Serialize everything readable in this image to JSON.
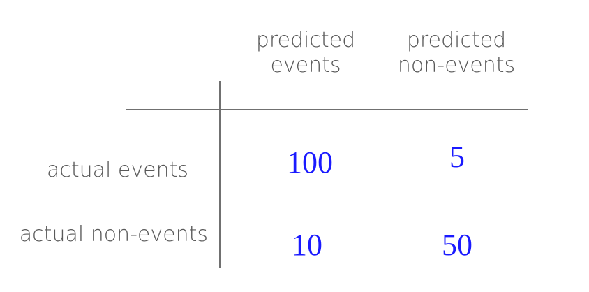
{
  "headers": {
    "predicted_events": [
      "predicted",
      "events"
    ],
    "predicted_non_events": [
      "predicted",
      "non-events"
    ]
  },
  "rows": [
    {
      "label": "actual events",
      "values": [
        "100",
        "5"
      ]
    },
    {
      "label": "actual non-events",
      "values": [
        "10",
        "50"
      ]
    }
  ],
  "colors": {
    "label_text": "#595959",
    "cell_text": "#1a1aff",
    "grid_line": "#707070"
  }
}
